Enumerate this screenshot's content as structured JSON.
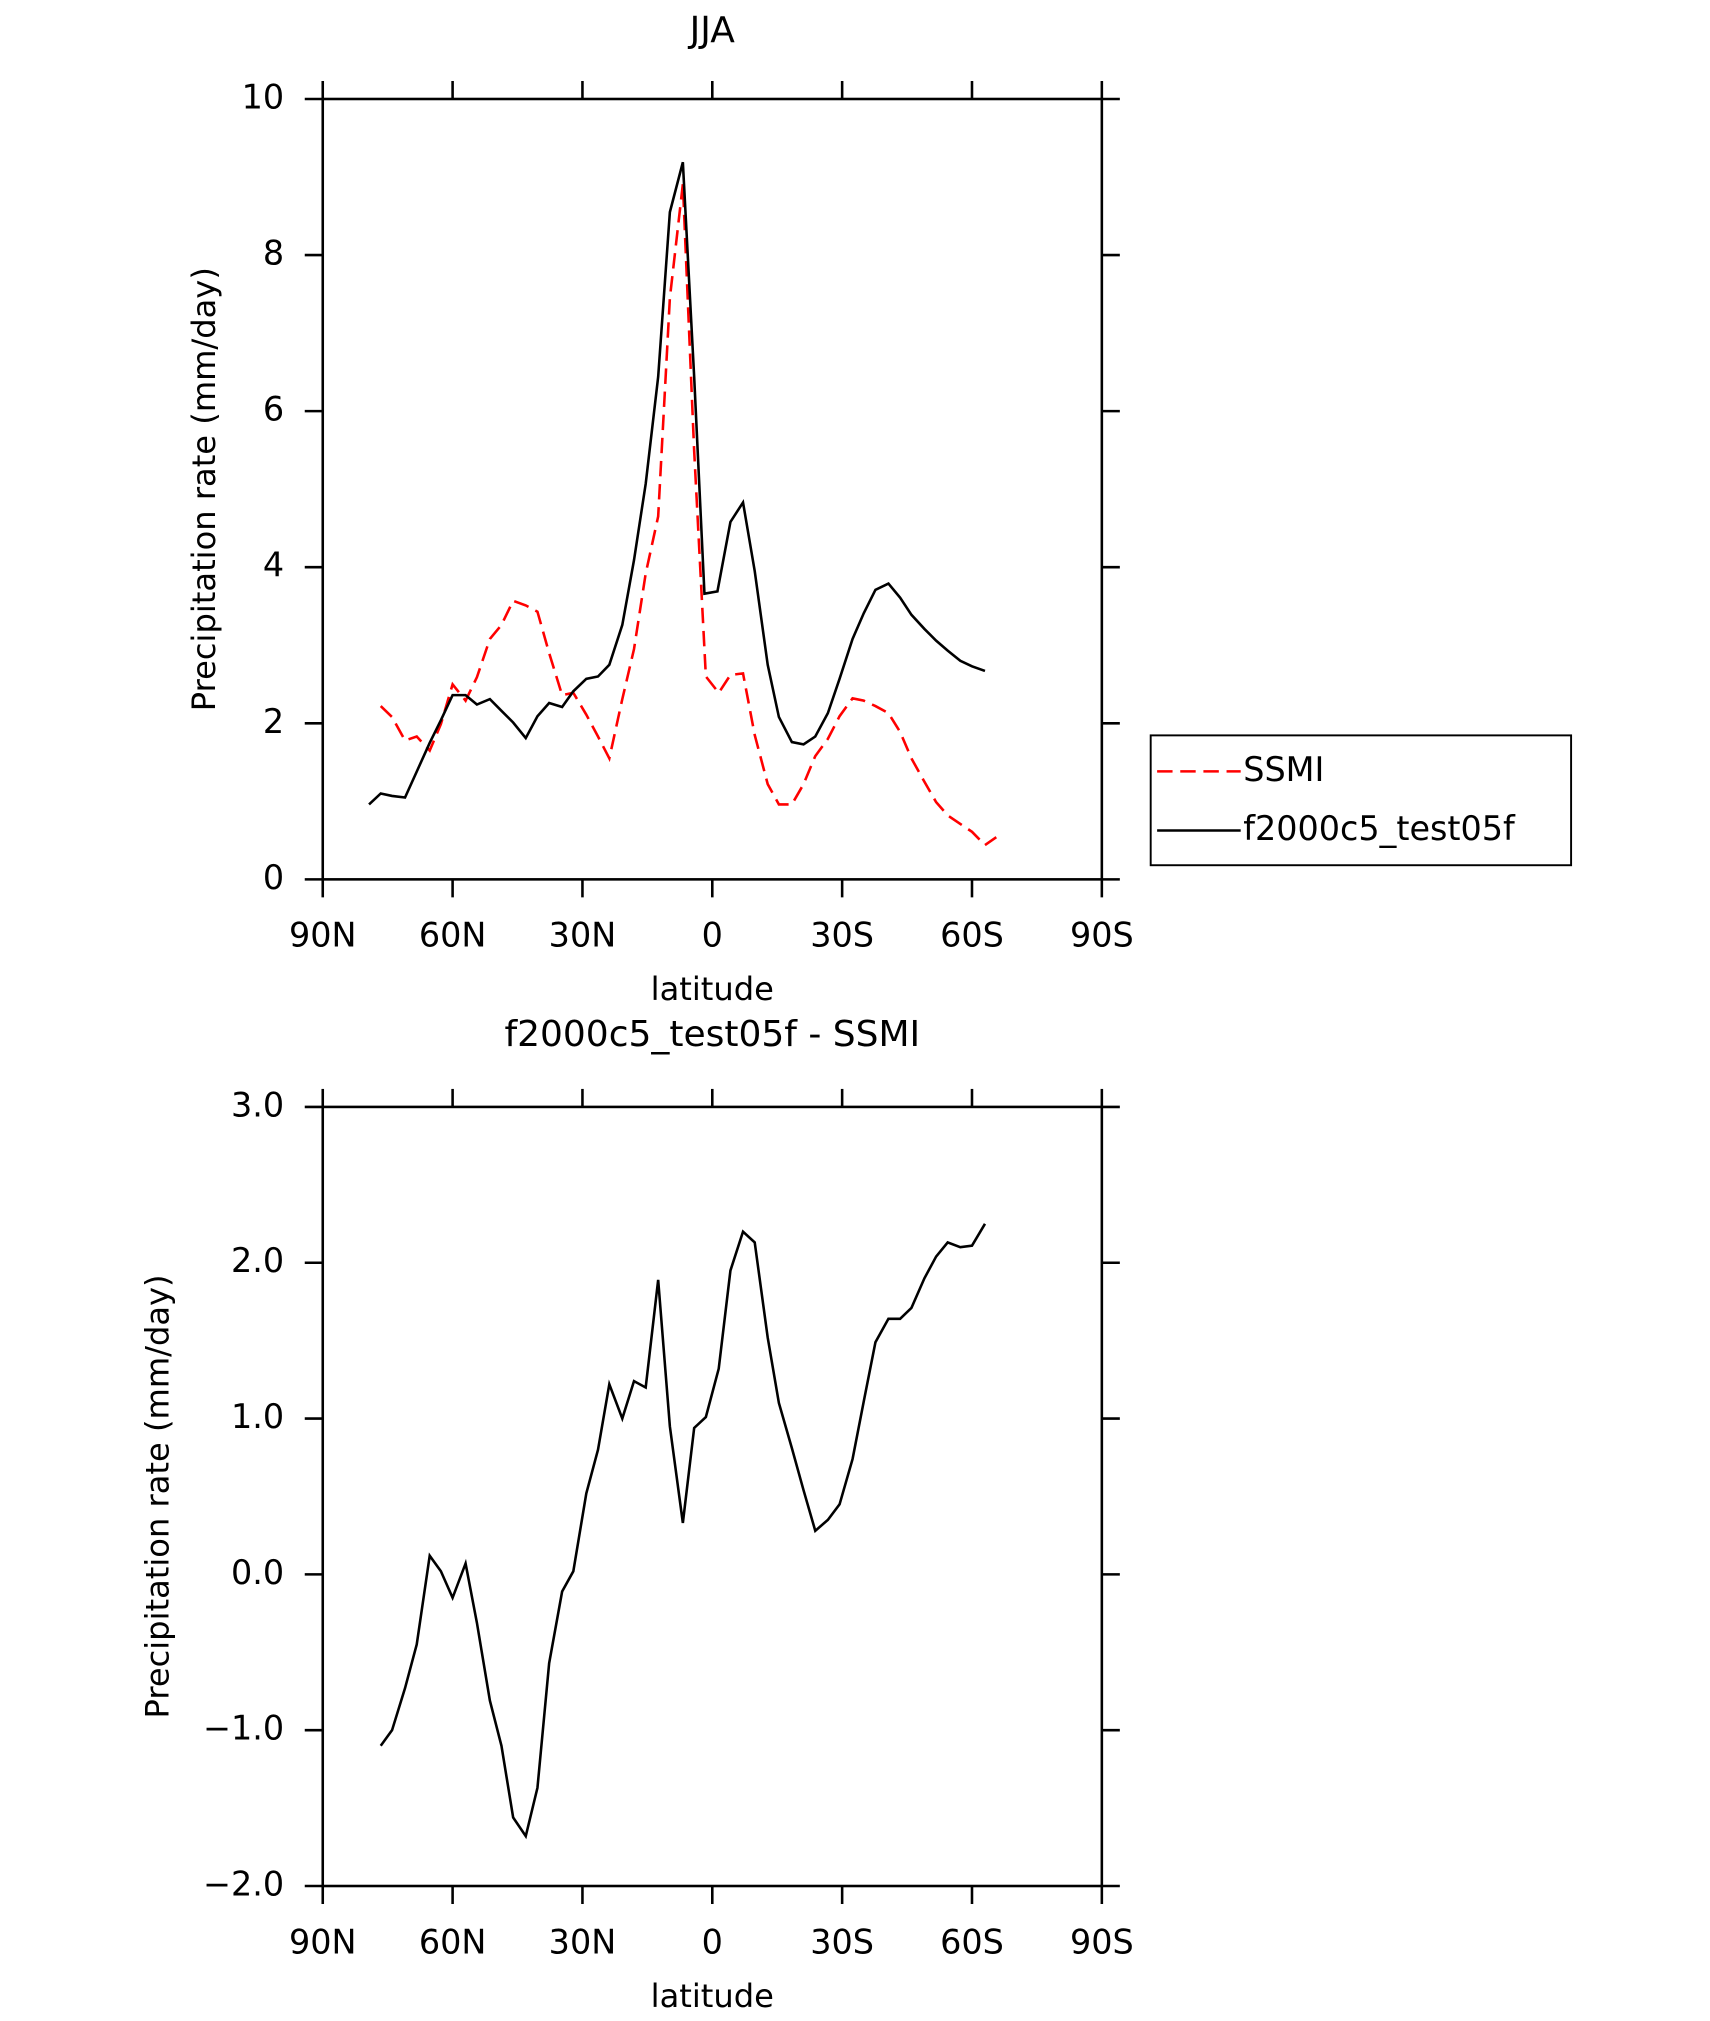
{
  "chart_data": [
    {
      "type": "line",
      "title": "JJA",
      "x_label": "latitude",
      "y_label": "Precipitation rate (mm/day)",
      "xlim": [
        90,
        -90
      ],
      "xticks": [
        {
          "value": 90,
          "label": "90N"
        },
        {
          "value": 60,
          "label": "60N"
        },
        {
          "value": 30,
          "label": "30N"
        },
        0,
        {
          "value": -30,
          "label": "30S"
        },
        {
          "value": -60,
          "label": "60S"
        },
        {
          "value": -90,
          "label": "90S"
        }
      ],
      "ylim": [
        0,
        10
      ],
      "yticks": [
        0,
        2,
        4,
        6,
        8,
        10
      ],
      "legend": "right",
      "series": [
        {
          "name": "SSMI",
          "color": "#ff0000",
          "style": "dashed",
          "x": [
            76.6,
            74.0,
            71.0,
            68.3,
            65.3,
            62.7,
            60.0,
            57.0,
            54.4,
            51.4,
            48.7,
            46.0,
            43.1,
            40.4,
            37.7,
            34.7,
            32.1,
            29.1,
            26.4,
            23.8,
            20.8,
            18.1,
            15.4,
            12.5,
            9.8,
            6.8,
            4.2,
            1.5,
            -1.5,
            -4.2,
            -7.1,
            -9.8,
            -12.8,
            -15.4,
            -18.4,
            -21.1,
            -23.8,
            -26.7,
            -29.4,
            -32.4,
            -35.0,
            -37.7,
            -40.7,
            -43.4,
            -46.0,
            -49.0,
            -51.7,
            -54.4,
            -57.3,
            -60.0,
            -63.0,
            -65.6
          ],
          "values": [
            2.22,
            2.08,
            1.78,
            1.83,
            1.65,
            1.99,
            2.5,
            2.29,
            2.59,
            3.08,
            3.26,
            3.57,
            3.51,
            3.43,
            2.9,
            2.36,
            2.39,
            2.11,
            1.83,
            1.55,
            2.31,
            2.95,
            3.92,
            4.65,
            7.45,
            8.91,
            5.49,
            2.6,
            2.39,
            2.62,
            2.64,
            1.85,
            1.22,
            0.96,
            0.96,
            1.22,
            1.58,
            1.8,
            2.09,
            2.32,
            2.29,
            2.22,
            2.13,
            1.89,
            1.55,
            1.25,
            0.99,
            0.82,
            0.71,
            0.61,
            0.44,
            0.54
          ]
        },
        {
          "name": "f2000c5_test05f",
          "color": "#000000",
          "style": "solid",
          "x": [
            79.3,
            76.6,
            74.0,
            71.0,
            68.3,
            65.3,
            62.7,
            60.0,
            57.0,
            54.4,
            51.4,
            48.7,
            46.0,
            43.1,
            40.4,
            37.7,
            34.7,
            32.1,
            29.1,
            26.4,
            23.8,
            20.8,
            18.1,
            15.4,
            12.5,
            9.8,
            6.8,
            4.2,
            1.8,
            -1.2,
            -4.2,
            -7.1,
            -9.8,
            -12.8,
            -15.4,
            -18.4,
            -21.1,
            -23.8,
            -26.7,
            -29.4,
            -32.4,
            -35.0,
            -37.7,
            -40.7,
            -43.4,
            -46.0,
            -49.0,
            -51.7,
            -54.4,
            -57.3,
            -60.0,
            -63.0
          ],
          "values": [
            0.96,
            1.1,
            1.07,
            1.05,
            1.38,
            1.75,
            2.04,
            2.36,
            2.36,
            2.24,
            2.31,
            2.16,
            2.01,
            1.81,
            2.09,
            2.26,
            2.21,
            2.41,
            2.57,
            2.6,
            2.75,
            3.26,
            4.09,
            5.07,
            6.44,
            8.55,
            9.19,
            6.44,
            3.66,
            3.69,
            4.58,
            4.83,
            3.95,
            2.75,
            2.08,
            1.76,
            1.73,
            1.83,
            2.13,
            2.57,
            3.08,
            3.41,
            3.71,
            3.79,
            3.61,
            3.39,
            3.21,
            3.06,
            2.93,
            2.8,
            2.73,
            2.67
          ]
        }
      ]
    },
    {
      "type": "line",
      "title": "f2000c5_test05f - SSMI",
      "x_label": "latitude",
      "y_label": "Precipitation rate (mm/day)",
      "xlim": [
        90,
        -90
      ],
      "xticks": [
        {
          "value": 90,
          "label": "90N"
        },
        {
          "value": 60,
          "label": "60N"
        },
        {
          "value": 30,
          "label": "30N"
        },
        0,
        {
          "value": -30,
          "label": "30S"
        },
        {
          "value": -60,
          "label": "60S"
        },
        {
          "value": -90,
          "label": "90S"
        }
      ],
      "ylim": [
        -2,
        3
      ],
      "yticks": [
        {
          "value": 3,
          "label": "3.0"
        },
        {
          "value": 2,
          "label": "2.0"
        },
        {
          "value": 1,
          "label": "1.0"
        },
        {
          "value": 0,
          "label": "0.0"
        },
        {
          "value": -1,
          "label": "−1.0"
        },
        {
          "value": -2,
          "label": "−2.0"
        }
      ],
      "color": "#000000",
      "x": [
        76.6,
        74.0,
        71.0,
        68.3,
        65.3,
        62.7,
        60.0,
        57.0,
        54.4,
        51.4,
        48.7,
        46.0,
        43.1,
        40.4,
        37.7,
        34.7,
        32.1,
        29.1,
        26.4,
        23.8,
        20.8,
        18.1,
        15.4,
        12.5,
        9.8,
        6.8,
        4.2,
        1.5,
        -1.5,
        -4.2,
        -7.1,
        -9.8,
        -12.8,
        -15.4,
        -18.4,
        -21.1,
        -23.8,
        -26.7,
        -29.4,
        -32.4,
        -35.0,
        -37.7,
        -40.7,
        -43.4,
        -46.0,
        -49.0,
        -51.7,
        -54.4,
        -57.3,
        -60.0,
        -63.0
      ],
      "values": [
        -1.1,
        -1.0,
        -0.73,
        -0.45,
        0.12,
        0.02,
        -0.15,
        0.07,
        -0.31,
        -0.81,
        -1.1,
        -1.56,
        -1.68,
        -1.37,
        -0.57,
        -0.11,
        0.02,
        0.52,
        0.8,
        1.22,
        1.0,
        1.24,
        1.2,
        1.89,
        0.95,
        0.33,
        0.94,
        1.01,
        1.32,
        1.95,
        2.2,
        2.13,
        1.52,
        1.1,
        0.81,
        0.54,
        0.28,
        0.35,
        0.45,
        0.74,
        1.11,
        1.49,
        1.64,
        1.64,
        1.71,
        1.9,
        2.04,
        2.13,
        2.1,
        2.11,
        2.25
      ]
    }
  ]
}
